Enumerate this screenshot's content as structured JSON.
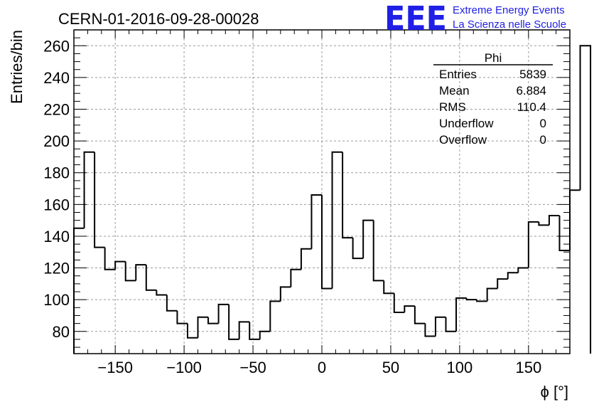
{
  "title": "CERN-01-2016-09-28-00028",
  "logo": {
    "mark": "EEE",
    "line1": "Extreme Energy Events",
    "line2": "La Scienza nelle Scuole",
    "color": "#1f1fe6"
  },
  "stats": {
    "name": "Phi",
    "rows": [
      {
        "label": "Entries",
        "value": "5839"
      },
      {
        "label": "Mean",
        "value": "6.884"
      },
      {
        "label": "RMS",
        "value": "110.4"
      },
      {
        "label": "Underflow",
        "value": "0"
      },
      {
        "label": "Overflow",
        "value": "0"
      }
    ]
  },
  "chart_data": {
    "type": "bar",
    "style": "step-histogram",
    "xlabel": "ϕ [°]",
    "ylabel": "Entries/bin",
    "xlim": [
      -180,
      180
    ],
    "ylim": [
      66,
      270
    ],
    "grid": true,
    "x_ticks": [
      -150,
      -100,
      -50,
      0,
      50,
      100,
      150
    ],
    "y_ticks": [
      80,
      100,
      120,
      140,
      160,
      180,
      200,
      220,
      240,
      260
    ],
    "bin_edges_start": -180,
    "bin_width": 7.5,
    "values": [
      145,
      193,
      133,
      119,
      124,
      112,
      122,
      106,
      103,
      93,
      85,
      76,
      89,
      85,
      97,
      75,
      86,
      75,
      80,
      99,
      108,
      119,
      132,
      166,
      107,
      193,
      139,
      126,
      150,
      112,
      104,
      92,
      96,
      85,
      77,
      89,
      80,
      101,
      100,
      99,
      107,
      113,
      117,
      120,
      149,
      147,
      153,
      131,
      169,
      260
    ]
  }
}
